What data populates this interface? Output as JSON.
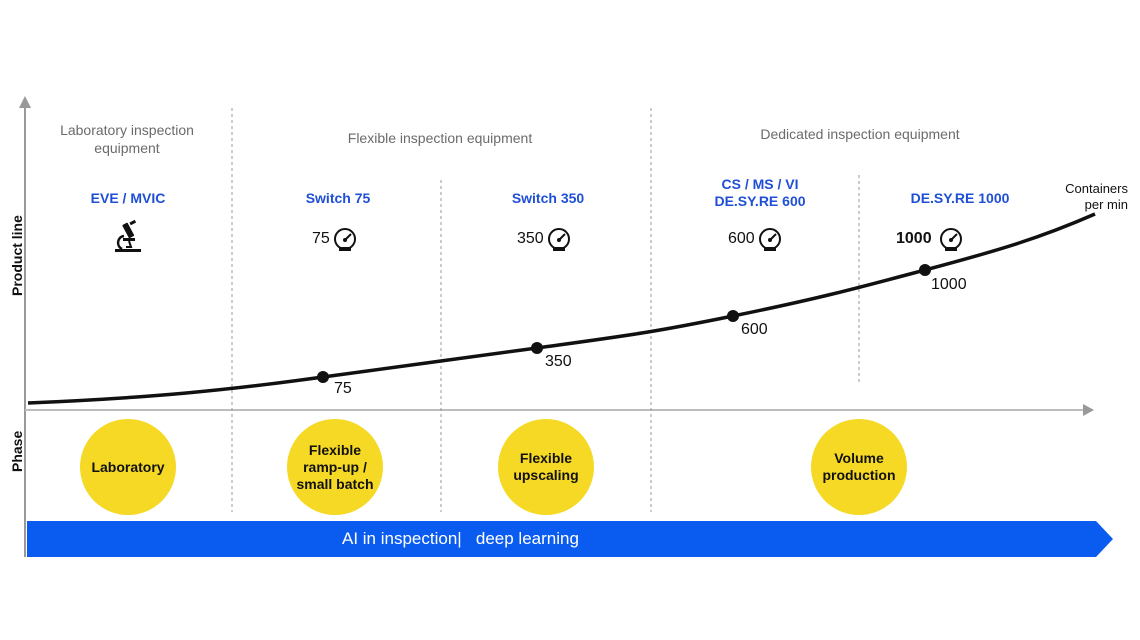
{
  "axes": {
    "y_label": "Product line",
    "phase_label": "Phase",
    "unit": [
      "Containers",
      "per min"
    ]
  },
  "categories": [
    {
      "label": [
        "Laboratory inspection",
        "equipment"
      ]
    },
    {
      "label": [
        "Flexible inspection equipment"
      ]
    },
    {
      "label": [
        "Dedicated inspection equipment"
      ]
    }
  ],
  "products": [
    {
      "name": [
        "EVE / MVIC"
      ],
      "icon": "microscope-icon"
    },
    {
      "name": [
        "Switch 75"
      ],
      "speed": "75",
      "icon": "speedometer-icon"
    },
    {
      "name": [
        "Switch 350"
      ],
      "speed": "350",
      "icon": "speedometer-icon"
    },
    {
      "name": [
        "CS / MS / VI",
        "DE.SY.RE 600"
      ],
      "speed": "600",
      "icon": "speedometer-icon"
    },
    {
      "name": [
        "DE.SY.RE 1000"
      ],
      "speed": "1000",
      "icon": "speedometer-icon"
    }
  ],
  "curve_points": [
    {
      "value": 75,
      "label": "75"
    },
    {
      "value": 350,
      "label": "350"
    },
    {
      "value": 600,
      "label": "600"
    },
    {
      "value": 1000,
      "label": "1000"
    }
  ],
  "phases": [
    {
      "label": [
        "Laboratory"
      ]
    },
    {
      "label": [
        "Flexible",
        "ramp-up /",
        "small batch"
      ]
    },
    {
      "label": [
        "Flexible",
        "upscaling"
      ]
    },
    {
      "label": [
        "Volume",
        "production"
      ]
    }
  ],
  "banner": {
    "text": "AI in inspection|   deep learning"
  },
  "colors": {
    "accent_blue": "#1f4fd6",
    "banner_blue": "#0a5cf0",
    "phase_yellow": "#f6d924",
    "axis_gray": "#999999"
  }
}
